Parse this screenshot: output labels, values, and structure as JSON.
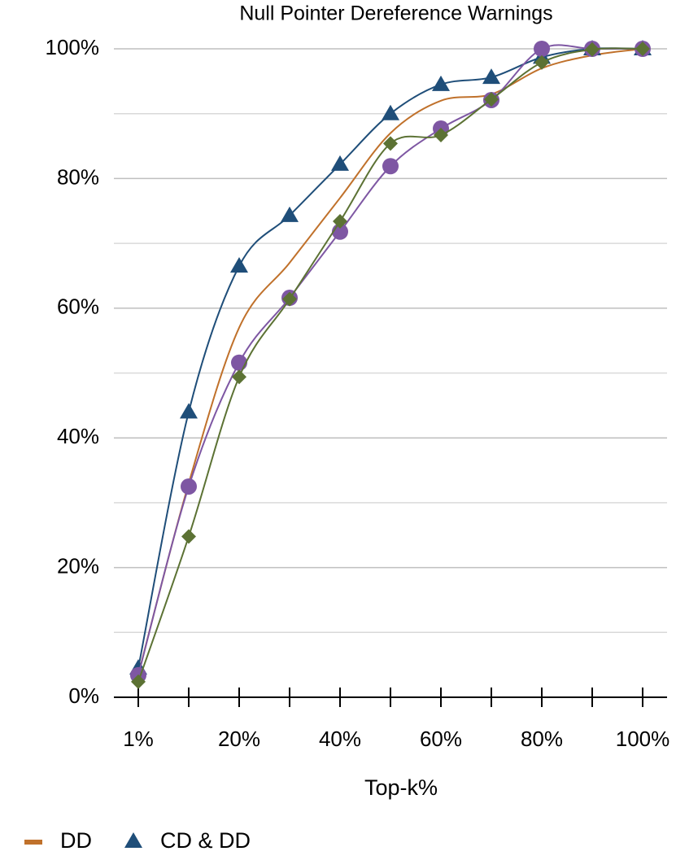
{
  "chart_data": {
    "type": "line",
    "title": "Null Pointer Dereference Warnings",
    "x_label": "Top-k%",
    "categories": [
      "1%",
      null,
      "20%",
      null,
      "40%",
      null,
      "60%",
      null,
      "80%",
      null,
      "100%"
    ],
    "ylim": [
      0,
      100
    ],
    "yticks": [
      {
        "value": 0,
        "label": "0%"
      },
      {
        "value": 20,
        "label": "20%"
      },
      {
        "value": 40,
        "label": "40%"
      },
      {
        "value": 60,
        "label": "60%"
      },
      {
        "value": 80,
        "label": "80%"
      },
      {
        "value": 100,
        "label": "100%"
      }
    ],
    "minor_yticks": [
      10,
      30,
      50,
      70,
      90
    ],
    "grid": true,
    "legend": "bottom-left",
    "series": [
      {
        "name": "DD",
        "color": "#c0712b",
        "marker": "none",
        "values": [
          3.5,
          33,
          57,
          67,
          77,
          87,
          92,
          93,
          97,
          99,
          100
        ]
      },
      {
        "name": "CD & DD",
        "color": "#1f4e79",
        "marker": "triangle",
        "values": [
          4.5,
          44,
          66.5,
          74.3,
          82.2,
          90,
          94.5,
          95.6,
          98.7,
          100,
          100
        ]
      },
      {
        "color": "#7e57a3",
        "marker": "circle",
        "values": [
          3.4,
          32.5,
          51.6,
          61.6,
          71.8,
          81.9,
          87.7,
          92.1,
          100,
          100,
          100
        ]
      },
      {
        "color": "#5c7234",
        "marker": "diamond",
        "values": [
          2.4,
          24.8,
          49.4,
          61.4,
          73.4,
          85.4,
          86.7,
          92.2,
          97.9,
          99.9,
          100
        ]
      }
    ]
  }
}
